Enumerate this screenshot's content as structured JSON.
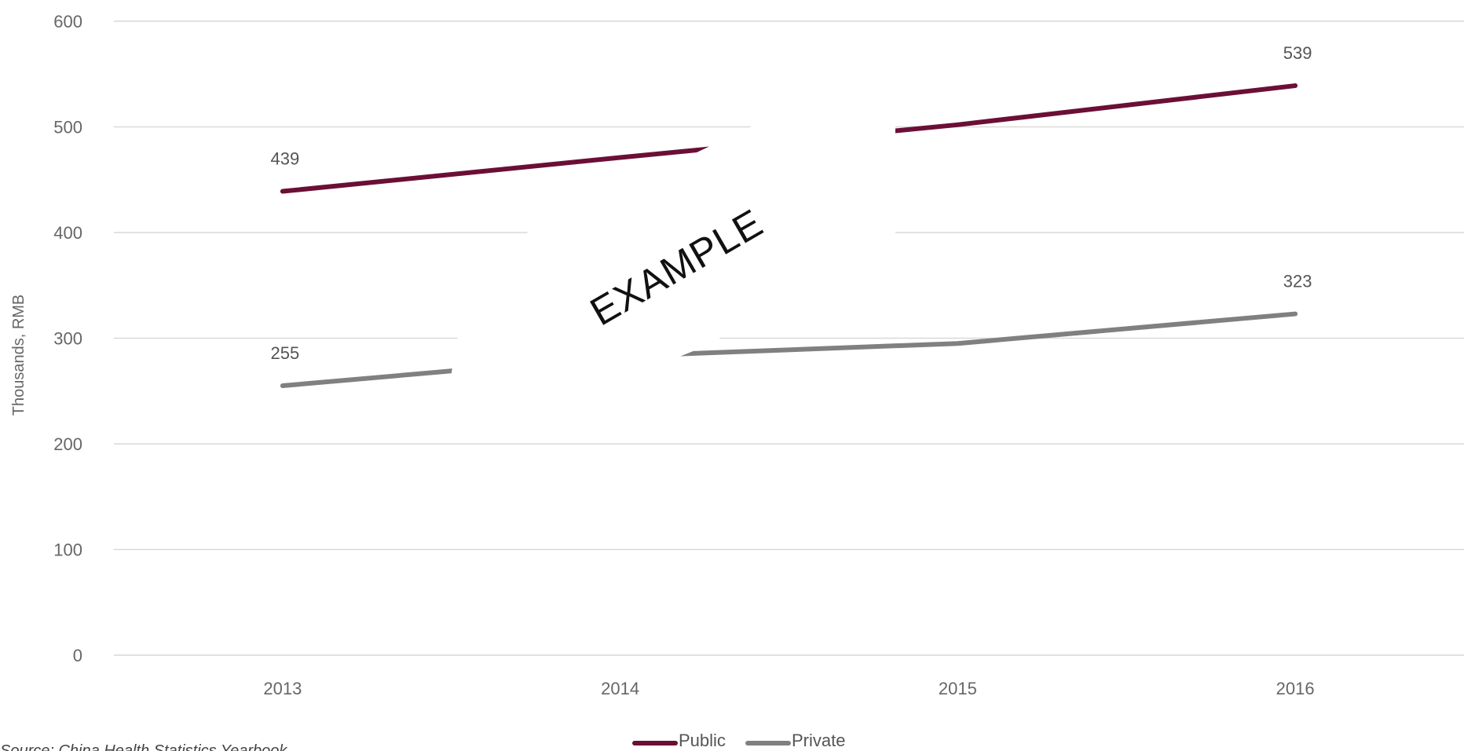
{
  "chart_data": {
    "type": "line",
    "title": "",
    "xlabel": "",
    "ylabel": "Thousands, RMB",
    "ylim": [
      0,
      600
    ],
    "yticks": [
      0,
      100,
      200,
      300,
      400,
      500,
      600
    ],
    "categories": [
      "2013",
      "2014",
      "2015",
      "2016"
    ],
    "series": [
      {
        "name": "Public",
        "color": "#6b0f36",
        "values": [
          439,
          471,
          502,
          539
        ],
        "labels": [
          "439",
          "",
          "",
          "539"
        ]
      },
      {
        "name": "Private",
        "color": "#808080",
        "values": [
          255,
          283,
          295,
          323
        ],
        "labels": [
          "255",
          "",
          "",
          "323"
        ]
      }
    ],
    "grid": true,
    "legend": "bottom",
    "watermark": "EXAMPLE",
    "source": "Source: China Health Statistics Yearbook"
  }
}
